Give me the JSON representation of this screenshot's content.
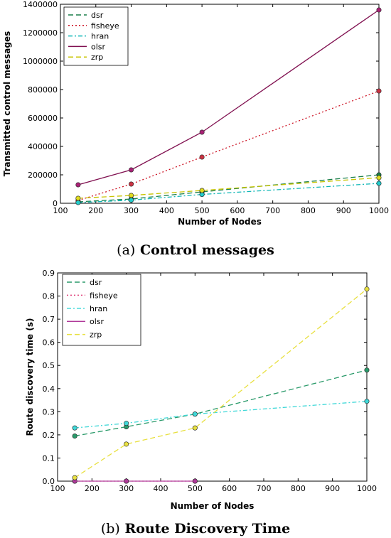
{
  "chart_data": [
    {
      "type": "line",
      "caption_letter": "a",
      "caption_text": " Control messages",
      "xlabel": "Number of Nodes",
      "ylabel": "Transmitted control messages",
      "xlim": [
        100,
        1000
      ],
      "ylim": [
        0,
        1400000
      ],
      "xticks": [
        100,
        200,
        300,
        400,
        500,
        600,
        700,
        800,
        900,
        1000
      ],
      "yticks": [
        0,
        200000,
        400000,
        600000,
        800000,
        1000000,
        1200000,
        1400000
      ],
      "legend_position": "top-left",
      "grid": false,
      "x": [
        150,
        300,
        500,
        1000
      ],
      "series": [
        {
          "name": "dsr",
          "values": [
            10000,
            30000,
            80000,
            200000
          ],
          "color": "#1a7f4a",
          "dash": "7,4",
          "marker": "#1a7f4a"
        },
        {
          "name": "fisheye",
          "values": [
            20000,
            135000,
            325000,
            790000
          ],
          "color": "#cc1122",
          "dash": "2,3",
          "marker": "#cc3344"
        },
        {
          "name": "hran",
          "values": [
            5000,
            22000,
            62000,
            140000
          ],
          "color": "#10b7b7",
          "dash": "6,3,2,3",
          "marker": "#22cccc"
        },
        {
          "name": "olsr",
          "values": [
            130000,
            235000,
            500000,
            1360000
          ],
          "color": "#801050",
          "dash": "",
          "marker": "#aa2277"
        },
        {
          "name": "zrp",
          "values": [
            35000,
            55000,
            90000,
            180000
          ],
          "color": "#c8c400",
          "dash": "7,4",
          "marker": "#e0dc20"
        }
      ]
    },
    {
      "type": "line",
      "caption_letter": "b",
      "caption_text": " Route Discovery Time",
      "xlabel": "Number of Nodes",
      "ylabel": "Route discovery time (s)",
      "xlim": [
        100,
        1000
      ],
      "ylim": [
        0,
        0.9
      ],
      "xticks": [
        100,
        200,
        300,
        400,
        500,
        600,
        700,
        800,
        900,
        1000
      ],
      "yticks": [
        0.0,
        0.1,
        0.2,
        0.3,
        0.4,
        0.5,
        0.6,
        0.7,
        0.8,
        0.9
      ],
      "ytick_labels": [
        "0.0",
        "0.1",
        "0.2",
        "0.3",
        "0.4",
        "0.5",
        "0.6",
        "0.7",
        "0.8",
        "0.9"
      ],
      "legend_position": "top-left",
      "grid": false,
      "x": [
        150,
        300,
        500,
        1000
      ],
      "series": [
        {
          "name": "dsr",
          "values": [
            0.195,
            0.235,
            0.29,
            0.48
          ],
          "color": "#2a9a6a",
          "dash": "7,4",
          "marker": "#2a9a6a"
        },
        {
          "name": "fisheye",
          "values": [
            0.0,
            0.0,
            0.0,
            null
          ],
          "color": "#e0407a",
          "dash": "2,3",
          "marker": "#e0407a"
        },
        {
          "name": "hran",
          "values": [
            0.23,
            0.25,
            0.29,
            0.345
          ],
          "color": "#40d8d8",
          "dash": "6,3,2,3",
          "marker": "#40d8d8"
        },
        {
          "name": "olsr",
          "values": [
            0.0,
            0.0,
            0.0,
            null
          ],
          "color": "#b03a9a",
          "dash": "",
          "marker": "#b03a9a"
        },
        {
          "name": "zrp",
          "values": [
            0.015,
            0.16,
            0.23,
            0.83
          ],
          "color": "#e8e040",
          "dash": "7,4",
          "marker": "#e8e040"
        }
      ]
    }
  ]
}
